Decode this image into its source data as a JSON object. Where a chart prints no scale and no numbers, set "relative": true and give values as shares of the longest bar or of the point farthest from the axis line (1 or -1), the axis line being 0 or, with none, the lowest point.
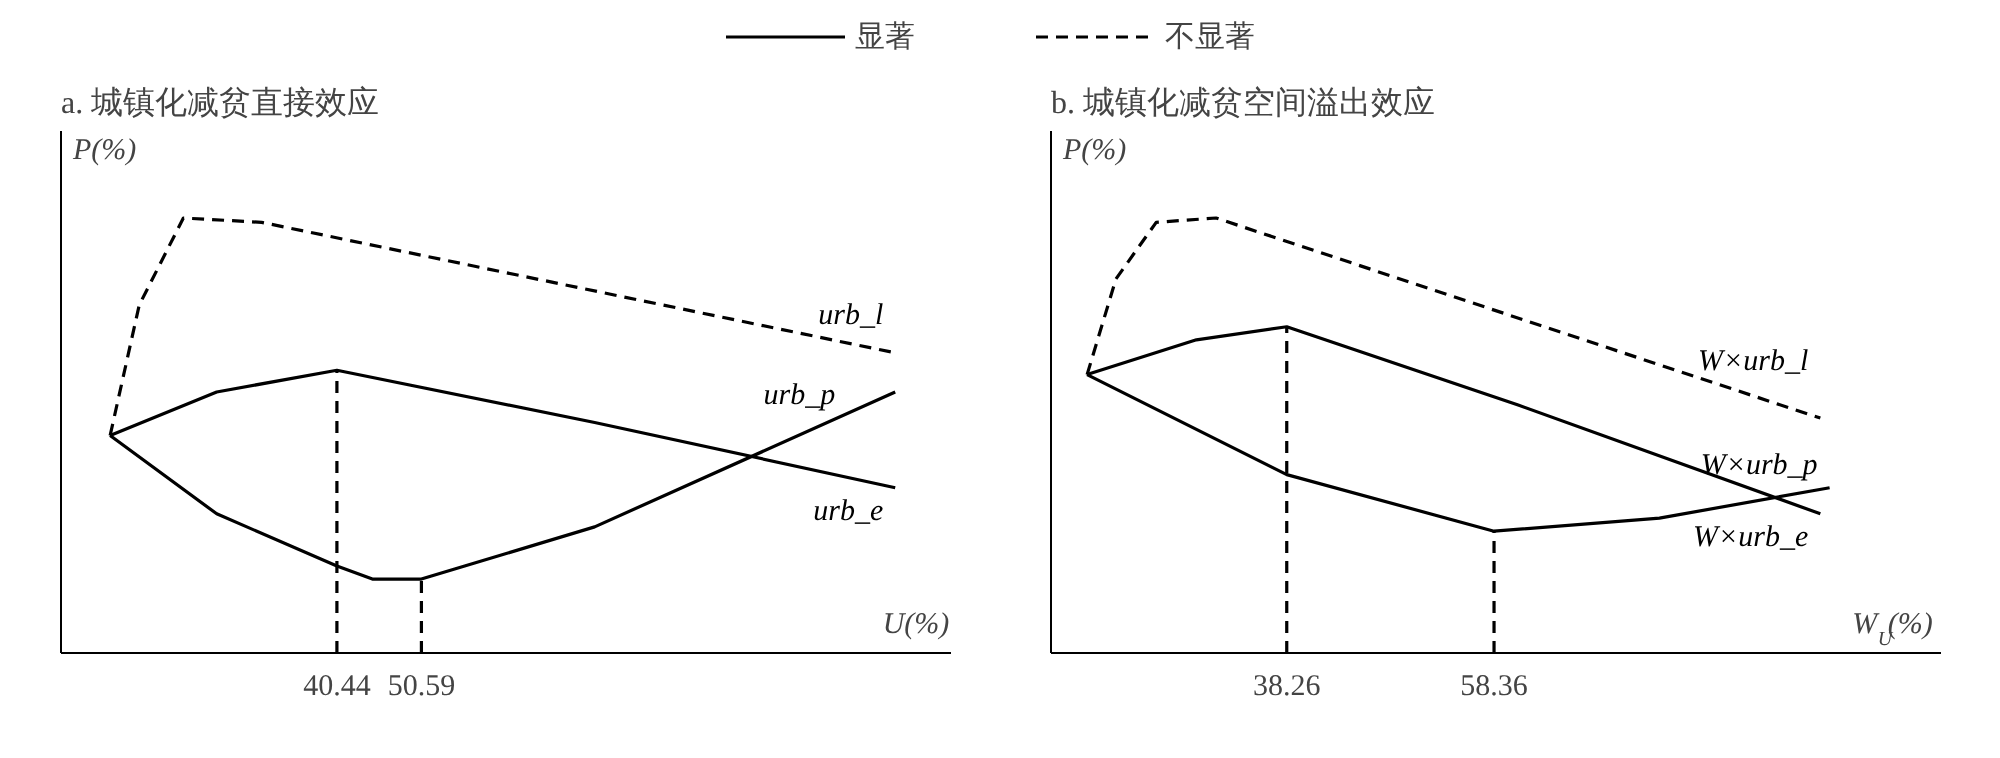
{
  "chart_data": [
    {
      "type": "line",
      "title": "a. 城镇化减贫直接效应",
      "xlabel": "U(%)",
      "ylabel": "P(%)",
      "relative": true,
      "grid": false,
      "legend": "top",
      "annotations": [
        "显著",
        "不显著"
      ],
      "xlim": [
        7.3,
        114.2
      ],
      "xticks": [
        40.44,
        50.59
      ],
      "ref_lines": [
        {
          "axis": "x",
          "value": 40.44,
          "line_style": "dashed"
        },
        {
          "axis": "x",
          "value": 50.59,
          "line_style": "dashed"
        }
      ],
      "series": [
        {
          "name": "urb_l",
          "color": "#000000",
          "line_style": "dashed",
          "x": [
            13.2,
            16.7,
            22.0,
            31.4,
            107.5
          ],
          "values": [
            0.5,
            0.8,
            1.0,
            0.99,
            0.69
          ]
        },
        {
          "name": "urb_e",
          "color": "#000000",
          "line_style": "solid",
          "x": [
            13.2,
            26.0,
            40.44,
            71.4,
            107.5
          ],
          "values": [
            0.5,
            0.6,
            0.65,
            0.53,
            0.38
          ]
        },
        {
          "name": "urb_p",
          "color": "#000000",
          "line_style": "solid",
          "x": [
            13.2,
            26.0,
            40.44,
            44.7,
            50.59,
            71.4,
            107.5
          ],
          "values": [
            0.5,
            0.32,
            0.2,
            0.17,
            0.17,
            0.29,
            0.6
          ]
        }
      ]
    },
    {
      "type": "line",
      "title": "b. 城镇化减贫空间溢出效应",
      "xlabel": "W$_{U}$(%)",
      "ylabel": "P(%)",
      "relative": true,
      "grid": false,
      "xlim": [
        15.4,
        101.7
      ],
      "xticks": [
        38.26,
        58.36
      ],
      "ref_lines": [
        {
          "axis": "x",
          "value": 38.26,
          "line_style": "dashed"
        },
        {
          "axis": "x",
          "value": 58.36,
          "line_style": "dashed"
        }
      ],
      "series": [
        {
          "name": "W×urb_l",
          "color": "#000000",
          "line_style": "dashed",
          "x": [
            18.9,
            21.7,
            25.6,
            31.4,
            90.0
          ],
          "values": [
            0.64,
            0.86,
            0.99,
            1.0,
            0.54
          ]
        },
        {
          "name": "W×urb_p",
          "color": "#000000",
          "line_style": "solid",
          "x": [
            18.9,
            38.26,
            58.36,
            74.4,
            90.9
          ],
          "values": [
            0.64,
            0.41,
            0.28,
            0.31,
            0.38
          ]
        },
        {
          "name": "W×urb_e",
          "color": "#000000",
          "line_style": "solid",
          "x": [
            18.9,
            29.5,
            38.26,
            60.7,
            90.0
          ],
          "values": [
            0.64,
            0.72,
            0.75,
            0.57,
            0.32
          ]
        }
      ]
    }
  ]
}
